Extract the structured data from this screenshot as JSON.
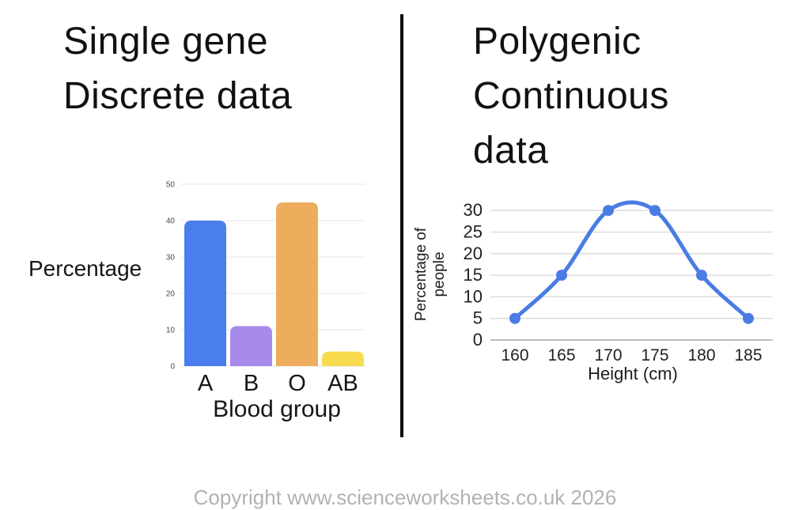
{
  "left_panel": {
    "title_lines": [
      "Single gene",
      "Discrete data"
    ],
    "y_axis_label": "Percentage",
    "x_axis_label": "Blood group"
  },
  "right_panel": {
    "title_lines": [
      "Polygenic",
      "Continuous",
      "data"
    ],
    "y_axis_label_lines": [
      "Percentage of",
      "people"
    ],
    "x_axis_label": "Height (cm)"
  },
  "footer": {
    "copyright": "Copyright www.scienceworksheets.co.uk 2026"
  },
  "colors": {
    "bar_a_blue": "#4a7dee",
    "bar_b_purple": "#a78aea",
    "bar_o_orange": "#eead5c",
    "bar_ab_yellow": "#f8da4e",
    "line_blue": "#4a7ce4",
    "gridline": "#e7e7e7",
    "gridline_right": "#dadada",
    "axis_zero_line": "#bdbdbd",
    "tick_text_small": "#4a4a4a",
    "tick_text_dark": "#202124",
    "divider_black": "#0d0d0d",
    "copyright_gray": "#b2b2b2"
  },
  "chart_data": [
    {
      "type": "bar",
      "title": "Single gene Discrete data",
      "categories": [
        "A",
        "B",
        "O",
        "AB"
      ],
      "values": [
        40,
        11,
        45,
        4
      ],
      "xlabel": "Blood group",
      "ylabel": "Percentage",
      "ylim": [
        0,
        50
      ],
      "yticks": [
        0,
        10,
        20,
        30,
        40,
        50
      ],
      "grid": true,
      "legend": false,
      "bar_colors": [
        "#4a7dee",
        "#a78aea",
        "#eead5c",
        "#f8da4e"
      ]
    },
    {
      "type": "line",
      "title": "Polygenic Continuous data",
      "x": [
        160,
        165,
        170,
        175,
        180,
        185
      ],
      "y": [
        5,
        15,
        30,
        30,
        15,
        5
      ],
      "xlabel": "Height (cm)",
      "ylabel": "Percentage of people",
      "ylim": [
        0,
        30
      ],
      "yticks": [
        0,
        5,
        10,
        15,
        20,
        25,
        30
      ],
      "xticks": [
        160,
        165,
        170,
        175,
        180,
        185
      ],
      "grid": true,
      "legend": false,
      "smooth": true,
      "markers": true,
      "line_color": "#4a7ce4"
    }
  ]
}
